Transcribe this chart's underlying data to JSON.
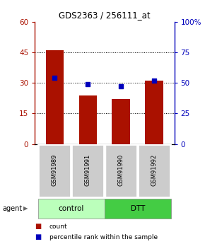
{
  "title": "GDS2363 / 256111_at",
  "samples": [
    "GSM91989",
    "GSM91991",
    "GSM91990",
    "GSM91992"
  ],
  "counts": [
    46,
    24,
    22,
    31
  ],
  "percentiles": [
    54,
    49,
    47,
    52
  ],
  "left_ylim": [
    0,
    60
  ],
  "right_ylim": [
    0,
    100
  ],
  "left_yticks": [
    0,
    15,
    30,
    45,
    60
  ],
  "right_yticks": [
    0,
    25,
    50,
    75,
    100
  ],
  "right_yticklabels": [
    "0",
    "25",
    "50",
    "75",
    "100%"
  ],
  "bar_color": "#aa1100",
  "dot_color": "#0000bb",
  "bar_width": 0.55,
  "sample_box_color": "#cccccc",
  "control_color": "#bbffbb",
  "dtt_color": "#44cc44",
  "agent_label": "agent"
}
